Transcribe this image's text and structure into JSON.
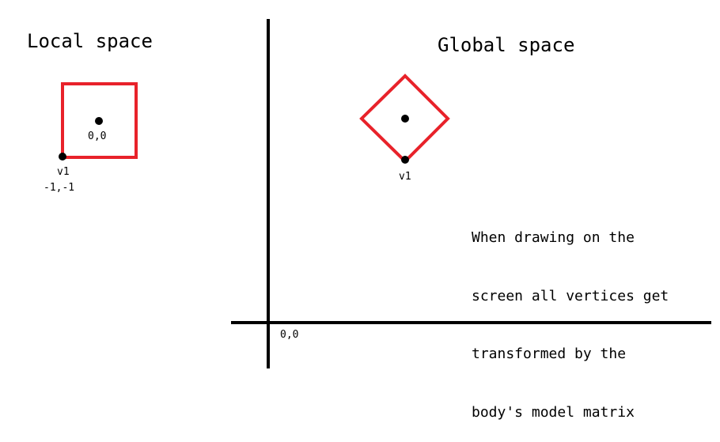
{
  "local": {
    "title": "Local space",
    "center_label": "0,0",
    "vertex_name": "v1",
    "vertex_coords": "-1,-1"
  },
  "global": {
    "title": "Global space",
    "vertex_name": "v1",
    "origin_label": "0,0",
    "note_lines": [
      "When drawing on the",
      "screen all vertices get",
      "transformed by the",
      "body's model matrix"
    ]
  },
  "colors": {
    "shape": "#e8222a",
    "ink": "#000000",
    "background": "#ffffff"
  }
}
